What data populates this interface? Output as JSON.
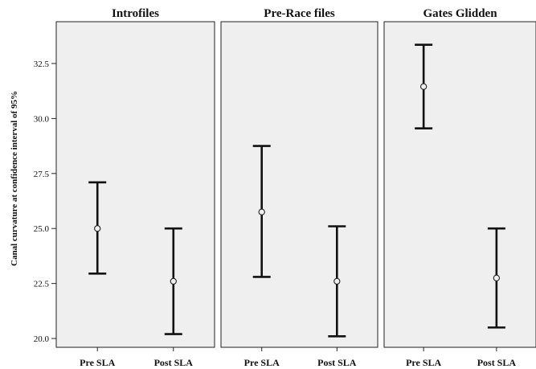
{
  "chart_data": {
    "type": "errorbar",
    "ylabel": "Canal curvature at confidence interval of 95%",
    "ylim": [
      19.6,
      34.4
    ],
    "yticks": [
      20.0,
      22.5,
      25.0,
      27.5,
      30.0,
      32.5
    ],
    "ytick_labels": [
      "20.0",
      "22.5",
      "25.0",
      "27.5",
      "30.0",
      "32.5"
    ],
    "panel_background": "#efefef",
    "panels": [
      {
        "title": "Introfiles",
        "categories": [
          "Pre SLA",
          "Post SLA"
        ],
        "mean": [
          25.0,
          22.6
        ],
        "lower": [
          22.95,
          20.2
        ],
        "upper": [
          27.1,
          25.0
        ]
      },
      {
        "title": "Pre-Race files",
        "categories": [
          "Pre SLA",
          "Post SLA"
        ],
        "mean": [
          25.75,
          22.6
        ],
        "lower": [
          22.8,
          20.1
        ],
        "upper": [
          28.75,
          25.1
        ]
      },
      {
        "title": "Gates Glidden",
        "categories": [
          "Pre SLA",
          "Post SLA"
        ],
        "mean": [
          31.45,
          22.75
        ],
        "lower": [
          29.55,
          20.5
        ],
        "upper": [
          33.35,
          25.0
        ]
      }
    ]
  }
}
